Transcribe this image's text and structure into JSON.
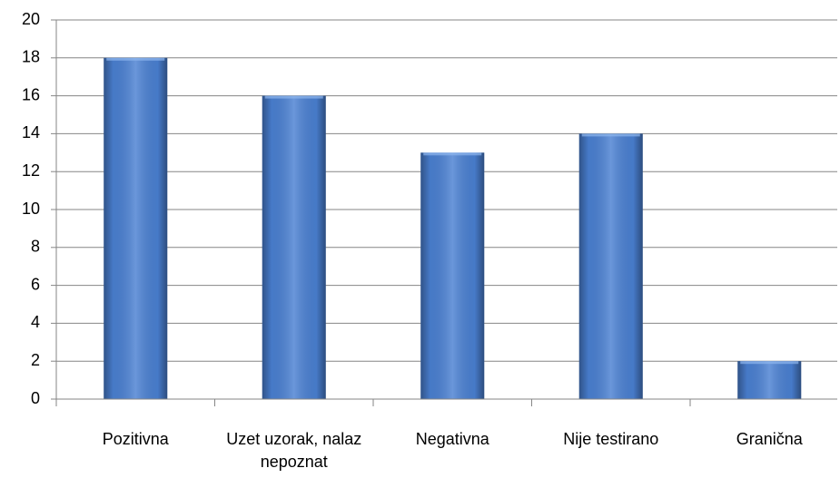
{
  "chart_data": {
    "type": "bar",
    "categories": [
      "Pozitivna",
      "Uzet uzorak, nalaz nepoznat",
      "Negativna",
      "Nije testirano",
      "Granična"
    ],
    "values": [
      18,
      16,
      13,
      14,
      2
    ],
    "color": "#4a80d2",
    "ylim": [
      0,
      20
    ],
    "yticks": [
      0,
      2,
      4,
      6,
      8,
      10,
      12,
      14,
      16,
      18,
      20
    ],
    "grid": true
  }
}
